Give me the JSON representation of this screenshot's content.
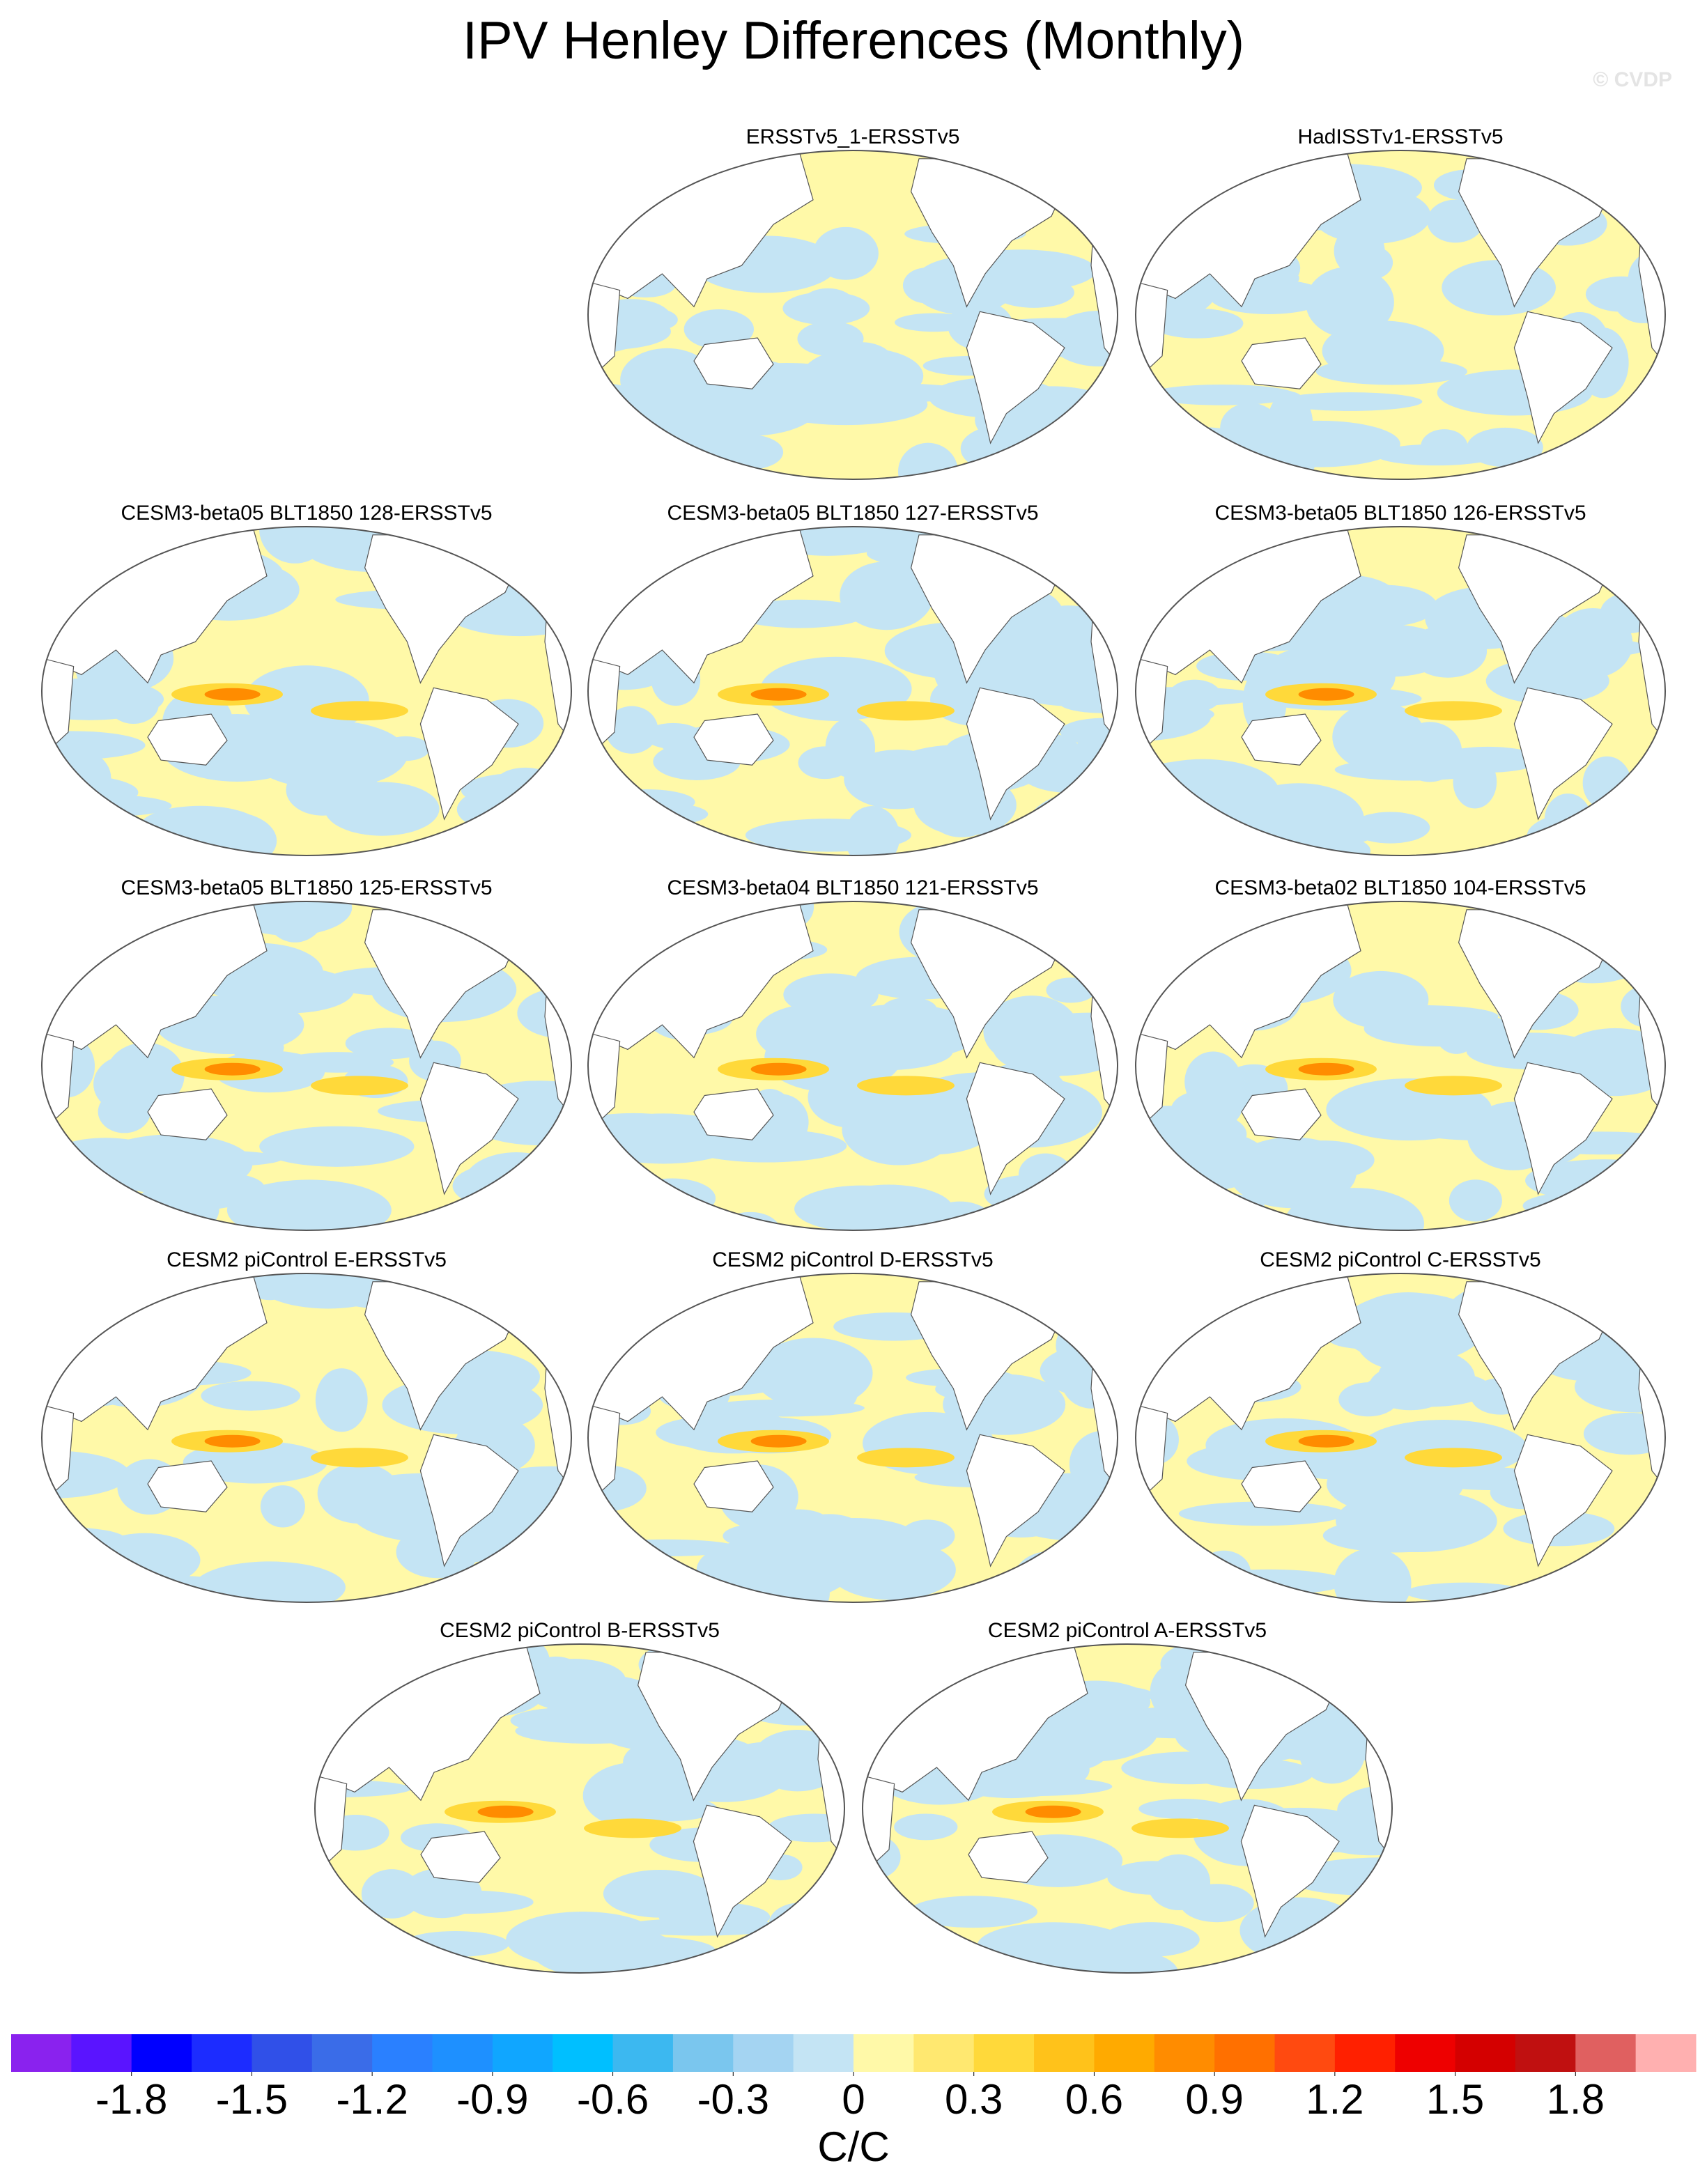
{
  "title": "IPV Henley Differences (Monthly)",
  "watermark": "© CVDP",
  "panels": [
    {
      "title": "ERSSTv5_1-ERSSTv5"
    },
    {
      "title": "HadISSTv1-ERSSTv5"
    },
    {
      "title": "CESM3-beta05 BLT1850 128-ERSSTv5"
    },
    {
      "title": "CESM3-beta05 BLT1850 127-ERSSTv5"
    },
    {
      "title": "CESM3-beta05 BLT1850 126-ERSSTv5"
    },
    {
      "title": "CESM3-beta05 BLT1850 125-ERSSTv5"
    },
    {
      "title": "CESM3-beta04 BLT1850 121-ERSSTv5"
    },
    {
      "title": "CESM3-beta02 BLT1850 104-ERSSTv5"
    },
    {
      "title": "CESM2 piControl E-ERSSTv5"
    },
    {
      "title": "CESM2 piControl D-ERSSTv5"
    },
    {
      "title": "CESM2 piControl C-ERSSTv5"
    },
    {
      "title": "CESM2 piControl B-ERSSTv5"
    },
    {
      "title": "CESM2 piControl A-ERSSTv5"
    }
  ],
  "colorbar": {
    "colors": [
      "#8a22ee",
      "#5a14ff",
      "#0000ff",
      "#1c2cff",
      "#3050e8",
      "#3a6ce8",
      "#2a80ff",
      "#1e90ff",
      "#10a6ff",
      "#00bfff",
      "#3cb8f0",
      "#7ac6ee",
      "#a4d4f2",
      "#c4e4f4",
      "#fff9a8",
      "#ffe870",
      "#ffd93a",
      "#ffc21a",
      "#ffaa00",
      "#ff8c00",
      "#ff7000",
      "#ff4a10",
      "#ff2000",
      "#ee0000",
      "#d40000",
      "#c01010",
      "#e06060",
      "#ffb0b0"
    ],
    "xlim": [
      -2.1,
      2.1
    ],
    "xticks": [
      -1.8,
      -1.5,
      -1.2,
      -0.9,
      -0.6,
      -0.3,
      0,
      0.3,
      0.6,
      0.9,
      1.2,
      1.5,
      1.8
    ],
    "label": "C/C"
  }
}
